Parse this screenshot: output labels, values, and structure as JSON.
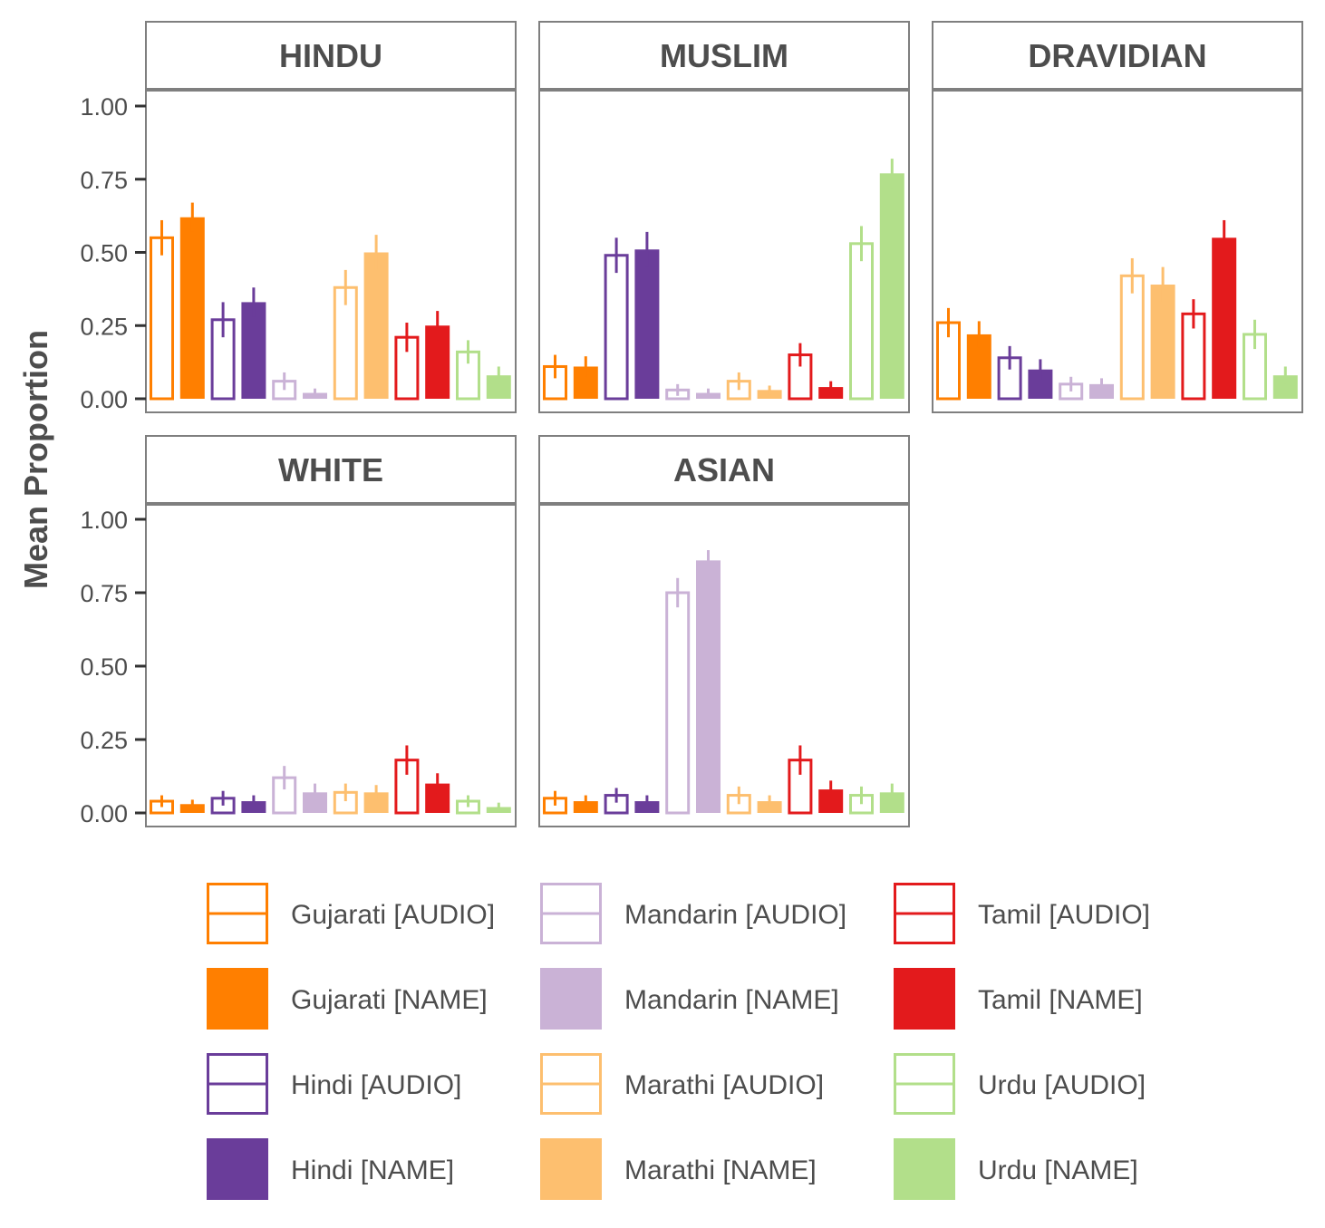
{
  "chart_data": {
    "type": "bar",
    "ylabel": "Mean Proportion",
    "xlabel": "",
    "ylim": [
      0,
      1.0
    ],
    "yticks": [
      "0.00",
      "0.25",
      "0.50",
      "0.75",
      "1.00"
    ],
    "grid": false,
    "legend_position": "bottom",
    "colors": {
      "Gujarati": "#ff7f00",
      "Hindi": "#6a3d9a",
      "Mandarin": "#cab2d6",
      "Marathi": "#fdbf6f",
      "Tamil": "#e31a1c",
      "Urdu": "#b2df8a"
    },
    "series": [
      {
        "name": "Gujarati [AUDIO]",
        "language": "Gujarati",
        "style": "outline"
      },
      {
        "name": "Gujarati [NAME]",
        "language": "Gujarati",
        "style": "filled"
      },
      {
        "name": "Hindi [AUDIO]",
        "language": "Hindi",
        "style": "outline"
      },
      {
        "name": "Hindi [NAME]",
        "language": "Hindi",
        "style": "filled"
      },
      {
        "name": "Mandarin [AUDIO]",
        "language": "Mandarin",
        "style": "outline"
      },
      {
        "name": "Mandarin [NAME]",
        "language": "Mandarin",
        "style": "filled"
      },
      {
        "name": "Marathi [AUDIO]",
        "language": "Marathi",
        "style": "outline"
      },
      {
        "name": "Marathi [NAME]",
        "language": "Marathi",
        "style": "filled"
      },
      {
        "name": "Tamil [AUDIO]",
        "language": "Tamil",
        "style": "outline"
      },
      {
        "name": "Tamil [NAME]",
        "language": "Tamil",
        "style": "filled"
      },
      {
        "name": "Urdu [AUDIO]",
        "language": "Urdu",
        "style": "outline"
      },
      {
        "name": "Urdu [NAME]",
        "language": "Urdu",
        "style": "filled"
      }
    ],
    "panels": [
      {
        "title": "HINDU",
        "values": [
          0.55,
          0.62,
          0.27,
          0.33,
          0.06,
          0.02,
          0.38,
          0.5,
          0.21,
          0.25,
          0.16,
          0.08
        ],
        "errors": [
          0.06,
          0.05,
          0.06,
          0.05,
          0.03,
          0.015,
          0.06,
          0.06,
          0.05,
          0.05,
          0.04,
          0.03
        ]
      },
      {
        "title": "MUSLIM",
        "values": [
          0.11,
          0.11,
          0.49,
          0.51,
          0.03,
          0.02,
          0.06,
          0.03,
          0.15,
          0.04,
          0.53,
          0.77
        ],
        "errors": [
          0.04,
          0.035,
          0.06,
          0.06,
          0.02,
          0.015,
          0.03,
          0.015,
          0.04,
          0.02,
          0.06,
          0.05
        ]
      },
      {
        "title": "DRAVIDIAN",
        "values": [
          0.26,
          0.22,
          0.14,
          0.1,
          0.05,
          0.05,
          0.42,
          0.39,
          0.29,
          0.55,
          0.22,
          0.08
        ],
        "errors": [
          0.05,
          0.045,
          0.04,
          0.035,
          0.025,
          0.02,
          0.06,
          0.06,
          0.05,
          0.06,
          0.05,
          0.03
        ]
      },
      {
        "title": "WHITE",
        "values": [
          0.04,
          0.03,
          0.05,
          0.04,
          0.12,
          0.07,
          0.07,
          0.07,
          0.18,
          0.1,
          0.04,
          0.02
        ],
        "errors": [
          0.02,
          0.015,
          0.025,
          0.02,
          0.04,
          0.03,
          0.03,
          0.025,
          0.05,
          0.035,
          0.02,
          0.015
        ]
      },
      {
        "title": "ASIAN",
        "values": [
          0.05,
          0.04,
          0.06,
          0.04,
          0.75,
          0.86,
          0.06,
          0.04,
          0.18,
          0.08,
          0.06,
          0.07
        ],
        "errors": [
          0.025,
          0.02,
          0.025,
          0.02,
          0.05,
          0.035,
          0.03,
          0.02,
          0.05,
          0.03,
          0.03,
          0.03
        ]
      }
    ]
  }
}
